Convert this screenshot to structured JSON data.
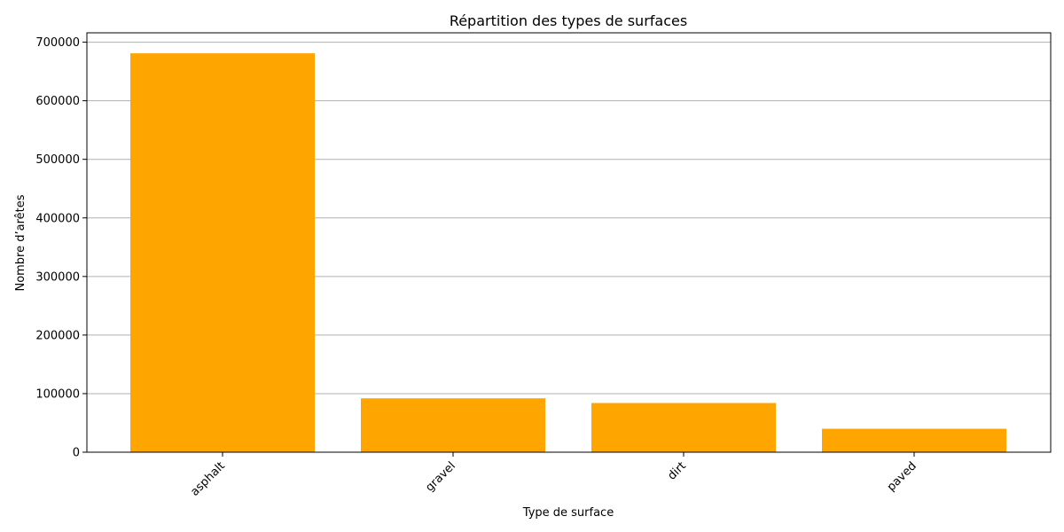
{
  "chart_data": {
    "type": "bar",
    "title": "Répartition des types de surfaces",
    "xlabel": "Type de surface",
    "ylabel": "Nombre d’arêtes",
    "categories": [
      "asphalt",
      "gravel",
      "dirt",
      "paved"
    ],
    "values": [
      681000,
      92000,
      84000,
      40000
    ],
    "ylim": [
      0,
      716000
    ],
    "yticks": [
      0,
      100000,
      200000,
      300000,
      400000,
      500000,
      600000,
      700000
    ],
    "grid": "y-axis only",
    "bar_color": "#FFA500",
    "grid_color": "#b0b0b0",
    "xtick_rotation_deg": 45
  }
}
